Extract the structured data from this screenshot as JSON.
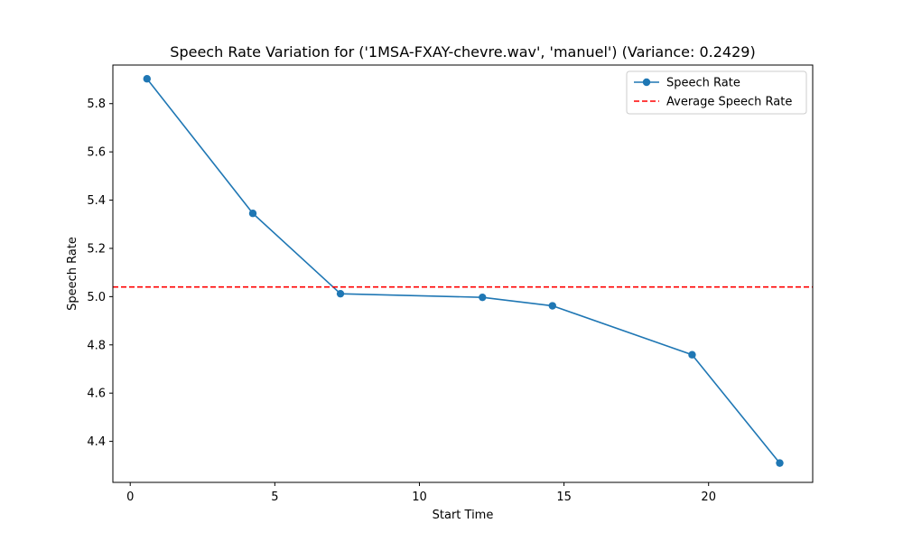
{
  "chart_data": {
    "type": "line",
    "title": "Speech Rate Variation for ('1MSA-FXAY-chevre.wav', 'manuel') (Variance: 0.2429)",
    "xlabel": "Start Time",
    "ylabel": "Speech Rate",
    "xlim": [
      -0.6,
      23.6
    ],
    "ylim": [
      4.23,
      5.96
    ],
    "x_ticks": [
      0,
      5,
      10,
      15,
      20
    ],
    "y_ticks": [
      4.4,
      4.6,
      4.8,
      5.0,
      5.2,
      5.4,
      5.6,
      5.8
    ],
    "grid": false,
    "legend_position": "top-right",
    "series": [
      {
        "name": "Speech Rate",
        "color": "#1f77b4",
        "style": "solid",
        "marker": "circle",
        "x": [
          0.58,
          4.24,
          7.27,
          12.18,
          14.6,
          19.43,
          22.46
        ],
        "y": [
          5.903,
          5.345,
          5.012,
          4.997,
          4.962,
          4.759,
          4.31
        ]
      },
      {
        "name": "Average Speech Rate",
        "color": "#ff0000",
        "style": "dashed",
        "marker": "none",
        "hline": 5.04
      }
    ]
  }
}
